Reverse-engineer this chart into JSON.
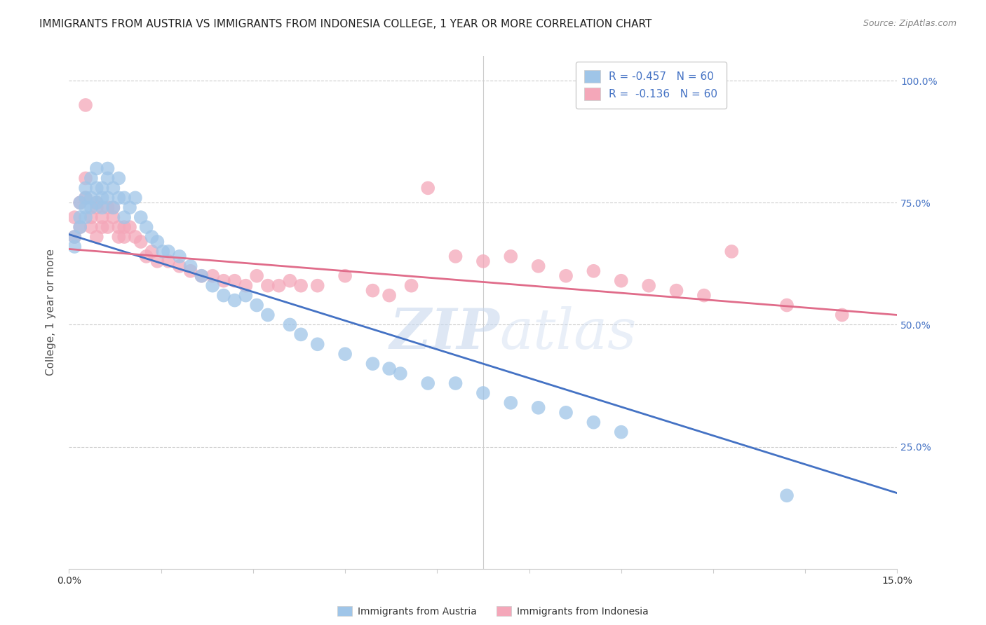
{
  "title": "IMMIGRANTS FROM AUSTRIA VS IMMIGRANTS FROM INDONESIA COLLEGE, 1 YEAR OR MORE CORRELATION CHART",
  "source": "Source: ZipAtlas.com",
  "ylabel": "College, 1 year or more",
  "xmin": 0.0,
  "xmax": 0.15,
  "ymin": 0.0,
  "ymax": 1.05,
  "austria_color": "#9FC5E8",
  "indonesia_color": "#F4A7B9",
  "austria_line_color": "#4472C4",
  "indonesia_line_color": "#E06C8A",
  "austria_scatter_x": [
    0.001,
    0.001,
    0.002,
    0.002,
    0.002,
    0.003,
    0.003,
    0.003,
    0.003,
    0.004,
    0.004,
    0.004,
    0.005,
    0.005,
    0.005,
    0.006,
    0.006,
    0.006,
    0.007,
    0.007,
    0.007,
    0.008,
    0.008,
    0.009,
    0.009,
    0.01,
    0.01,
    0.011,
    0.012,
    0.013,
    0.014,
    0.015,
    0.016,
    0.017,
    0.018,
    0.02,
    0.022,
    0.024,
    0.026,
    0.028,
    0.03,
    0.032,
    0.034,
    0.036,
    0.04,
    0.042,
    0.045,
    0.05,
    0.055,
    0.058,
    0.06,
    0.065,
    0.07,
    0.075,
    0.08,
    0.085,
    0.09,
    0.095,
    0.1,
    0.13
  ],
  "austria_scatter_y": [
    0.68,
    0.66,
    0.72,
    0.7,
    0.75,
    0.78,
    0.74,
    0.76,
    0.72,
    0.8,
    0.76,
    0.74,
    0.82,
    0.78,
    0.75,
    0.78,
    0.76,
    0.74,
    0.82,
    0.8,
    0.76,
    0.78,
    0.74,
    0.8,
    0.76,
    0.72,
    0.76,
    0.74,
    0.76,
    0.72,
    0.7,
    0.68,
    0.67,
    0.65,
    0.65,
    0.64,
    0.62,
    0.6,
    0.58,
    0.56,
    0.55,
    0.56,
    0.54,
    0.52,
    0.5,
    0.48,
    0.46,
    0.44,
    0.42,
    0.41,
    0.4,
    0.38,
    0.38,
    0.36,
    0.34,
    0.33,
    0.32,
    0.3,
    0.28,
    0.15
  ],
  "indonesia_scatter_x": [
    0.001,
    0.001,
    0.002,
    0.002,
    0.003,
    0.003,
    0.003,
    0.004,
    0.004,
    0.005,
    0.005,
    0.005,
    0.006,
    0.006,
    0.007,
    0.007,
    0.008,
    0.008,
    0.009,
    0.009,
    0.01,
    0.01,
    0.011,
    0.012,
    0.013,
    0.014,
    0.015,
    0.016,
    0.018,
    0.02,
    0.022,
    0.024,
    0.026,
    0.028,
    0.03,
    0.032,
    0.034,
    0.036,
    0.038,
    0.04,
    0.042,
    0.045,
    0.05,
    0.055,
    0.058,
    0.062,
    0.065,
    0.07,
    0.075,
    0.08,
    0.085,
    0.09,
    0.095,
    0.1,
    0.105,
    0.11,
    0.115,
    0.12,
    0.13,
    0.14
  ],
  "indonesia_scatter_y": [
    0.68,
    0.72,
    0.75,
    0.7,
    0.95,
    0.8,
    0.76,
    0.7,
    0.72,
    0.74,
    0.68,
    0.75,
    0.7,
    0.72,
    0.7,
    0.74,
    0.74,
    0.72,
    0.7,
    0.68,
    0.7,
    0.68,
    0.7,
    0.68,
    0.67,
    0.64,
    0.65,
    0.63,
    0.63,
    0.62,
    0.61,
    0.6,
    0.6,
    0.59,
    0.59,
    0.58,
    0.6,
    0.58,
    0.58,
    0.59,
    0.58,
    0.58,
    0.6,
    0.57,
    0.56,
    0.58,
    0.78,
    0.64,
    0.63,
    0.64,
    0.62,
    0.6,
    0.61,
    0.59,
    0.58,
    0.57,
    0.56,
    0.65,
    0.54,
    0.52
  ],
  "austria_line_x0": 0.0,
  "austria_line_y0": 0.685,
  "austria_line_x1": 0.15,
  "austria_line_y1": 0.155,
  "indonesia_line_x0": 0.0,
  "indonesia_line_y0": 0.655,
  "indonesia_line_x1": 0.15,
  "indonesia_line_y1": 0.52,
  "watermark_zip": "ZIP",
  "watermark_atlas": "atlas",
  "background_color": "#ffffff",
  "grid_color": "#cccccc",
  "title_color": "#222222",
  "axis_label_color": "#555555",
  "right_axis_color": "#4472C4",
  "vertical_line_x": 0.075,
  "legend_label_austria": "R = -0.457   N = 60",
  "legend_label_indonesia": "R =  -0.136   N = 60",
  "bottom_legend_austria": "Immigrants from Austria",
  "bottom_legend_indonesia": "Immigrants from Indonesia"
}
